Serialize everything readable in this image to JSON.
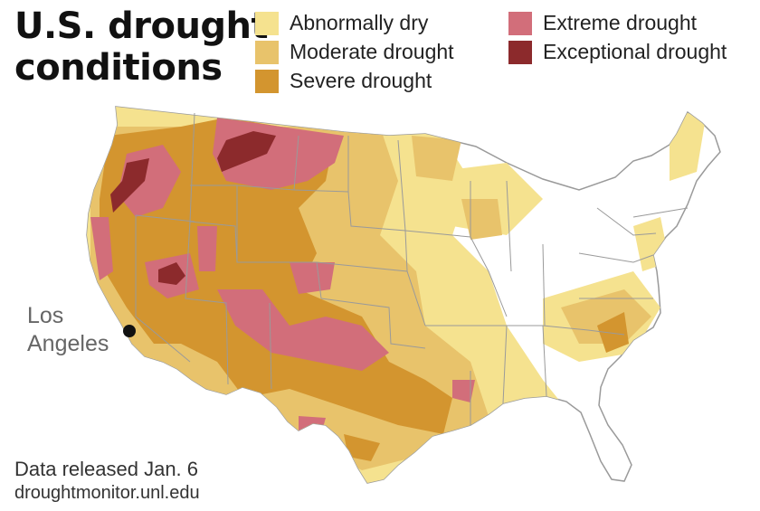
{
  "title": "U.S. drought\nconditions",
  "legend": [
    {
      "label": "Abnormally dry",
      "color": "#f5e28f"
    },
    {
      "label": "Moderate drought",
      "color": "#e8c36b"
    },
    {
      "label": "Severe drought",
      "color": "#d3952f"
    },
    {
      "label": "Extreme drought",
      "color": "#d26e7a"
    },
    {
      "label": "Exceptional drought",
      "color": "#8c2a2c"
    }
  ],
  "city": {
    "label": "Los\nAngeles"
  },
  "footer": {
    "released": "Data released Jan. 6",
    "source": "droughtmonitor.unl.edu"
  }
}
